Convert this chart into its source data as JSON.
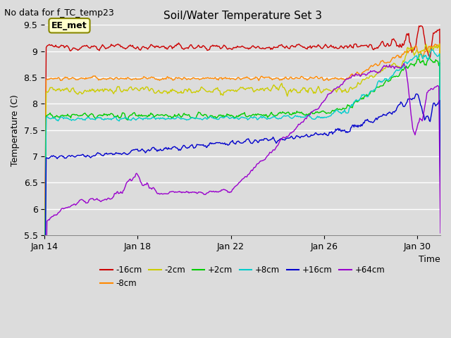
{
  "title": "Soil/Water Temperature Set 3",
  "subtitle": "No data for f_TC_temp23",
  "xlabel": "Time",
  "ylabel": "Temperature (C)",
  "ylim": [
    5.5,
    9.5
  ],
  "xlim": [
    0,
    17
  ],
  "xtick_positions": [
    0,
    4,
    8,
    12,
    16
  ],
  "xtick_labels": [
    "Jan 14",
    "Jan 18",
    "Jan 22",
    "Jan 26",
    "Jan 30"
  ],
  "ytick_positions": [
    5.5,
    6.0,
    6.5,
    7.0,
    7.5,
    8.0,
    8.5,
    9.0,
    9.5
  ],
  "background_color": "#dcdcdc",
  "axes_bg_color": "#dcdcdc",
  "annotation_text": "EE_met",
  "annotation_box_color": "#ffffcc",
  "annotation_box_edge": "#888800",
  "series": [
    {
      "label": "-16cm",
      "color": "#cc0000"
    },
    {
      "label": "-8cm",
      "color": "#ff8800"
    },
    {
      "label": "-2cm",
      "color": "#cccc00"
    },
    {
      "label": "+2cm",
      "color": "#00cc00"
    },
    {
      "label": "+8cm",
      "color": "#00cccc"
    },
    {
      "label": "+16cm",
      "color": "#0000cc"
    },
    {
      "label": "+64cm",
      "color": "#9900cc"
    }
  ]
}
